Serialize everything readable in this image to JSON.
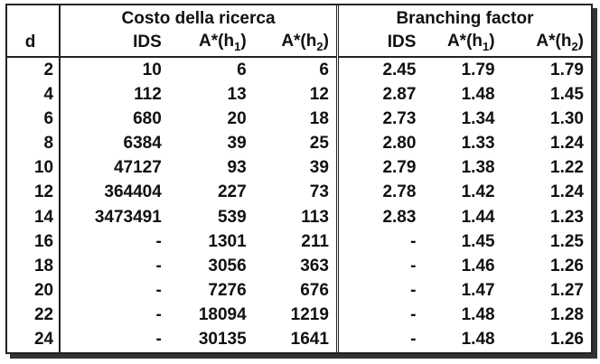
{
  "table": {
    "group_headers": {
      "cost": "Costo della ricerca",
      "branching": "Branching factor"
    },
    "columns": {
      "d": "d",
      "ids": "IDS",
      "astar_h1_prefix": "A*(h",
      "astar_h1_sub": "1",
      "astar_h2_prefix": "A*(h",
      "astar_h2_sub": "2",
      "close_paren": ")"
    },
    "rows": [
      {
        "d": "2",
        "cost_ids": "10",
        "cost_h1": "6",
        "cost_h2": "6",
        "bf_ids": "2.45",
        "bf_h1": "1.79",
        "bf_h2": "1.79"
      },
      {
        "d": "4",
        "cost_ids": "112",
        "cost_h1": "13",
        "cost_h2": "12",
        "bf_ids": "2.87",
        "bf_h1": "1.48",
        "bf_h2": "1.45"
      },
      {
        "d": "6",
        "cost_ids": "680",
        "cost_h1": "20",
        "cost_h2": "18",
        "bf_ids": "2.73",
        "bf_h1": "1.34",
        "bf_h2": "1.30"
      },
      {
        "d": "8",
        "cost_ids": "6384",
        "cost_h1": "39",
        "cost_h2": "25",
        "bf_ids": "2.80",
        "bf_h1": "1.33",
        "bf_h2": "1.24"
      },
      {
        "d": "10",
        "cost_ids": "47127",
        "cost_h1": "93",
        "cost_h2": "39",
        "bf_ids": "2.79",
        "bf_h1": "1.38",
        "bf_h2": "1.22"
      },
      {
        "d": "12",
        "cost_ids": "364404",
        "cost_h1": "227",
        "cost_h2": "73",
        "bf_ids": "2.78",
        "bf_h1": "1.42",
        "bf_h2": "1.24"
      },
      {
        "d": "14",
        "cost_ids": "3473491",
        "cost_h1": "539",
        "cost_h2": "113",
        "bf_ids": "2.83",
        "bf_h1": "1.44",
        "bf_h2": "1.23"
      },
      {
        "d": "16",
        "cost_ids": "-",
        "cost_h1": "1301",
        "cost_h2": "211",
        "bf_ids": "-",
        "bf_h1": "1.45",
        "bf_h2": "1.25"
      },
      {
        "d": "18",
        "cost_ids": "-",
        "cost_h1": "3056",
        "cost_h2": "363",
        "bf_ids": "-",
        "bf_h1": "1.46",
        "bf_h2": "1.26"
      },
      {
        "d": "20",
        "cost_ids": "-",
        "cost_h1": "7276",
        "cost_h2": "676",
        "bf_ids": "-",
        "bf_h1": "1.47",
        "bf_h2": "1.27"
      },
      {
        "d": "22",
        "cost_ids": "-",
        "cost_h1": "18094",
        "cost_h2": "1219",
        "bf_ids": "-",
        "bf_h1": "1.48",
        "bf_h2": "1.28"
      },
      {
        "d": "24",
        "cost_ids": "-",
        "cost_h1": "30135",
        "cost_h2": "1641",
        "bf_ids": "-",
        "bf_h1": "1.48",
        "bf_h2": "1.26"
      }
    ]
  }
}
